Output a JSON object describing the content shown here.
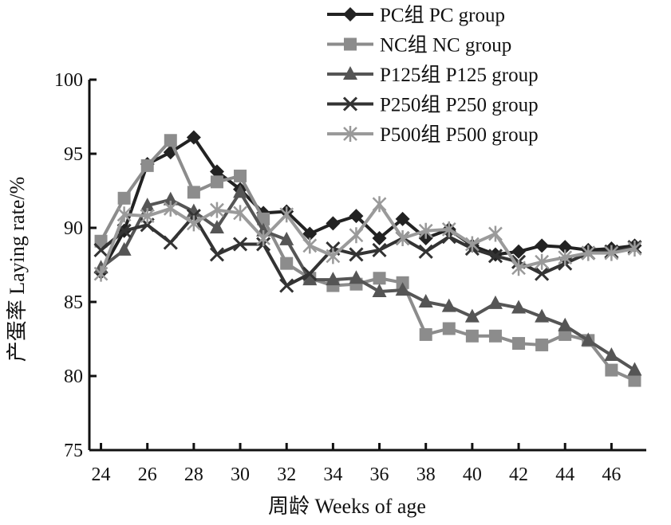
{
  "chart_data": {
    "type": "line",
    "title": "",
    "xlabel": "周龄 Weeks of age",
    "ylabel": "产蛋率 Laying rate/%",
    "xlim": [
      23.5,
      47.5
    ],
    "ylim": [
      75,
      100
    ],
    "xticks": [
      24,
      26,
      28,
      30,
      32,
      34,
      36,
      38,
      40,
      42,
      44,
      46
    ],
    "yticks": [
      75,
      80,
      85,
      90,
      95,
      100
    ],
    "grid": false,
    "legend_position": "top-right",
    "x": [
      24,
      25,
      26,
      27,
      28,
      29,
      30,
      31,
      32,
      33,
      34,
      35,
      36,
      37,
      38,
      39,
      40,
      41,
      42,
      43,
      44,
      45,
      46,
      47
    ],
    "series": [
      {
        "name": "PC组 PC group",
        "color": "#222222",
        "marker": "diamond",
        "values": [
          87.0,
          89.8,
          94.3,
          95.1,
          96.1,
          93.8,
          92.6,
          91.0,
          91.1,
          89.6,
          90.3,
          90.8,
          89.3,
          90.6,
          89.3,
          89.9,
          88.8,
          88.2,
          88.4,
          88.8,
          88.7,
          88.5,
          88.6,
          88.8
        ]
      },
      {
        "name": "NC组 NC group",
        "color": "#8c8c8c",
        "marker": "square",
        "values": [
          89.1,
          92.0,
          94.2,
          95.9,
          92.4,
          93.1,
          93.5,
          90.6,
          87.6,
          86.6,
          86.1,
          86.2,
          86.6,
          86.3,
          82.8,
          83.2,
          82.7,
          82.7,
          82.2,
          82.1,
          82.8,
          82.4,
          80.4,
          79.7
        ]
      },
      {
        "name": "P125组 P125 group",
        "color": "#555555",
        "marker": "triangle",
        "values": [
          87.3,
          88.5,
          91.5,
          91.9,
          91.1,
          90.0,
          92.4,
          89.8,
          89.2,
          86.5,
          86.5,
          86.6,
          85.7,
          85.8,
          85.0,
          84.7,
          84.0,
          84.9,
          84.6,
          84.0,
          83.4,
          82.4,
          81.4,
          80.4
        ]
      },
      {
        "name": "P250组 P250 group",
        "color": "#333333",
        "marker": "x",
        "values": [
          88.5,
          89.8,
          90.2,
          89.0,
          90.8,
          88.2,
          88.9,
          88.9,
          86.1,
          86.9,
          88.6,
          88.2,
          88.5,
          89.3,
          88.4,
          89.4,
          88.6,
          88.1,
          87.7,
          86.9,
          87.6,
          88.3,
          88.4,
          88.7
        ]
      },
      {
        "name": "P500组 P500 group",
        "color": "#9a9a9a",
        "marker": "asterisk",
        "values": [
          86.9,
          90.9,
          90.8,
          91.3,
          90.3,
          91.2,
          91.0,
          89.3,
          90.9,
          88.8,
          88.1,
          89.5,
          91.6,
          89.3,
          89.8,
          89.9,
          88.9,
          89.6,
          87.3,
          87.7,
          88.0,
          88.3,
          88.3,
          88.6
        ]
      }
    ]
  }
}
